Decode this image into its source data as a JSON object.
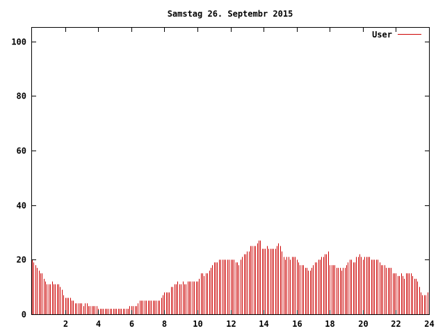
{
  "chart_data": {
    "type": "bar",
    "title": "Samstag 26. Septembr 2015",
    "xlabel": "",
    "ylabel": "",
    "xlim": [
      0,
      24
    ],
    "ylim": [
      0,
      105
    ],
    "xticks": [
      2,
      4,
      6,
      8,
      10,
      12,
      14,
      16,
      18,
      20,
      22,
      24
    ],
    "yticks": [
      0,
      20,
      40,
      60,
      80,
      100
    ],
    "grid": false,
    "legend": {
      "position": "top-right",
      "entries": [
        "User"
      ]
    },
    "bar_color": "#cc0000",
    "series": [
      {
        "name": "User",
        "x": [
          0.0,
          0.1,
          0.2,
          0.3,
          0.4,
          0.5,
          0.6,
          0.7,
          0.8,
          0.9,
          1.0,
          1.1,
          1.2,
          1.3,
          1.4,
          1.5,
          1.6,
          1.7,
          1.8,
          1.9,
          2.0,
          2.1,
          2.2,
          2.3,
          2.4,
          2.5,
          2.6,
          2.7,
          2.8,
          2.9,
          3.0,
          3.1,
          3.2,
          3.3,
          3.4,
          3.5,
          3.6,
          3.7,
          3.8,
          3.9,
          4.0,
          4.1,
          4.2,
          4.3,
          4.4,
          4.5,
          4.6,
          4.7,
          4.8,
          4.9,
          5.0,
          5.1,
          5.2,
          5.3,
          5.4,
          5.5,
          5.6,
          5.7,
          5.8,
          5.9,
          6.0,
          6.1,
          6.2,
          6.3,
          6.4,
          6.5,
          6.6,
          6.7,
          6.8,
          6.9,
          7.0,
          7.1,
          7.2,
          7.3,
          7.4,
          7.5,
          7.6,
          7.7,
          7.8,
          7.9,
          8.0,
          8.1,
          8.2,
          8.3,
          8.4,
          8.5,
          8.6,
          8.7,
          8.8,
          8.9,
          9.0,
          9.1,
          9.2,
          9.3,
          9.4,
          9.5,
          9.6,
          9.7,
          9.8,
          9.9,
          10.0,
          10.1,
          10.2,
          10.3,
          10.4,
          10.5,
          10.6,
          10.7,
          10.8,
          10.9,
          11.0,
          11.1,
          11.2,
          11.3,
          11.4,
          11.5,
          11.6,
          11.7,
          11.8,
          11.9,
          12.0,
          12.1,
          12.2,
          12.3,
          12.4,
          12.5,
          12.6,
          12.7,
          12.8,
          12.9,
          13.0,
          13.1,
          13.2,
          13.3,
          13.4,
          13.5,
          13.6,
          13.7,
          13.8,
          13.9,
          14.0,
          14.1,
          14.2,
          14.3,
          14.4,
          14.5,
          14.6,
          14.7,
          14.8,
          14.9,
          15.0,
          15.1,
          15.2,
          15.3,
          15.4,
          15.5,
          15.6,
          15.7,
          15.8,
          15.9,
          16.0,
          16.1,
          16.2,
          16.3,
          16.4,
          16.5,
          16.6,
          16.7,
          16.8,
          16.9,
          17.0,
          17.1,
          17.2,
          17.3,
          17.4,
          17.5,
          17.6,
          17.7,
          17.8,
          17.9,
          18.0,
          18.1,
          18.2,
          18.3,
          18.4,
          18.5,
          18.6,
          18.7,
          18.8,
          18.9,
          19.0,
          19.1,
          19.2,
          19.3,
          19.4,
          19.5,
          19.6,
          19.7,
          19.8,
          19.9,
          20.0,
          20.1,
          20.2,
          20.3,
          20.4,
          20.5,
          20.6,
          20.7,
          20.8,
          20.9,
          21.0,
          21.1,
          21.2,
          21.3,
          21.4,
          21.5,
          21.6,
          21.7,
          21.8,
          21.9,
          22.0,
          22.1,
          22.2,
          22.3,
          22.4,
          22.5,
          22.6,
          22.7,
          22.8,
          22.9,
          23.0,
          23.1,
          23.2,
          23.3,
          23.4,
          23.5,
          23.6,
          23.7,
          23.8,
          23.9
        ],
        "values": [
          20,
          19,
          18,
          17,
          16,
          15,
          15,
          13,
          12,
          11,
          11,
          11,
          12,
          11,
          11,
          11,
          11,
          10,
          9,
          7,
          6,
          6,
          6,
          6,
          5,
          5,
          4,
          4,
          4,
          4,
          4,
          3,
          4,
          4,
          3,
          3,
          3,
          3,
          3,
          3,
          2,
          2,
          2,
          2,
          2,
          2,
          2,
          2,
          2,
          2,
          2,
          2,
          2,
          2,
          2,
          2,
          2,
          2,
          2,
          3,
          3,
          3,
          3,
          3,
          4,
          5,
          5,
          5,
          5,
          5,
          5,
          5,
          5,
          5,
          5,
          5,
          5,
          5,
          6,
          7,
          8,
          8,
          8,
          8,
          10,
          10,
          11,
          11,
          12,
          11,
          11,
          12,
          11,
          11,
          12,
          12,
          12,
          12,
          12,
          12,
          12,
          13,
          15,
          15,
          14,
          15,
          15,
          16,
          17,
          18,
          19,
          19,
          19,
          20,
          20,
          20,
          20,
          20,
          20,
          20,
          20,
          20,
          20,
          19,
          19,
          18,
          20,
          21,
          22,
          22,
          23,
          23,
          25,
          25,
          25,
          25,
          26,
          27,
          27,
          24,
          24,
          24,
          25,
          24,
          24,
          24,
          24,
          24,
          25,
          26,
          25,
          23,
          21,
          20,
          21,
          21,
          20,
          21,
          21,
          21,
          20,
          19,
          18,
          18,
          18,
          17,
          17,
          16,
          16,
          17,
          18,
          19,
          19,
          20,
          20,
          21,
          21,
          22,
          22,
          23,
          18,
          18,
          18,
          18,
          17,
          17,
          17,
          16,
          17,
          17,
          18,
          19,
          20,
          20,
          19,
          19,
          21,
          21,
          22,
          21,
          20,
          21,
          21,
          21,
          21,
          20,
          20,
          20,
          20,
          20,
          19,
          18,
          18,
          18,
          17,
          17,
          17,
          17,
          15,
          15,
          15,
          14,
          14,
          15,
          14,
          13,
          15,
          15,
          15,
          15,
          14,
          13,
          13,
          12,
          10,
          8,
          7,
          7,
          7,
          8
        ]
      }
    ]
  }
}
